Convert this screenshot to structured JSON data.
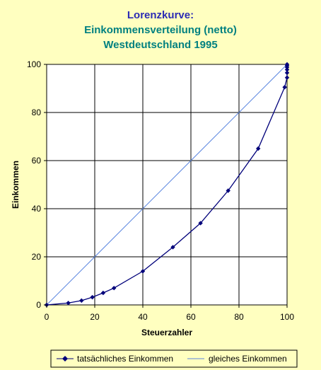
{
  "colors": {
    "background": "#ffffc0",
    "title_line1": "#2b2bb4",
    "title_line2": "#008080",
    "title_line3": "#008080",
    "series_actual": "#00007a",
    "series_equal": "#5b86e0",
    "plot_bg": "#ffffff"
  },
  "chart_data": {
    "type": "line",
    "title": [
      "Lorenzkurve:",
      "Einkommensverteilung (netto)",
      "Westdeutschland 1995"
    ],
    "xlabel": "Steuerzahler",
    "ylabel": "Einkommen",
    "xlim": [
      0,
      100
    ],
    "ylim": [
      0,
      100
    ],
    "xticks": [
      0,
      20,
      40,
      60,
      80,
      100
    ],
    "yticks": [
      0,
      20,
      40,
      60,
      80,
      100
    ],
    "grid": true,
    "legend_position": "bottom",
    "series": [
      {
        "name": "tatsächliches Einkommen",
        "marker": "diamond",
        "x": [
          0,
          9,
          14.5,
          19,
          23.5,
          28,
          40,
          52.5,
          64,
          75.5,
          88,
          99,
          100,
          100,
          100,
          100,
          100,
          100
        ],
        "y": [
          0,
          0.8,
          1.8,
          3.2,
          5,
          7,
          14,
          24,
          34,
          47.5,
          65,
          90.5,
          94.5,
          96.5,
          97.8,
          98.8,
          99.5,
          100
        ]
      },
      {
        "name": "gleiches Einkommen",
        "marker": "none",
        "x": [
          0,
          100
        ],
        "y": [
          0,
          100
        ]
      }
    ]
  }
}
